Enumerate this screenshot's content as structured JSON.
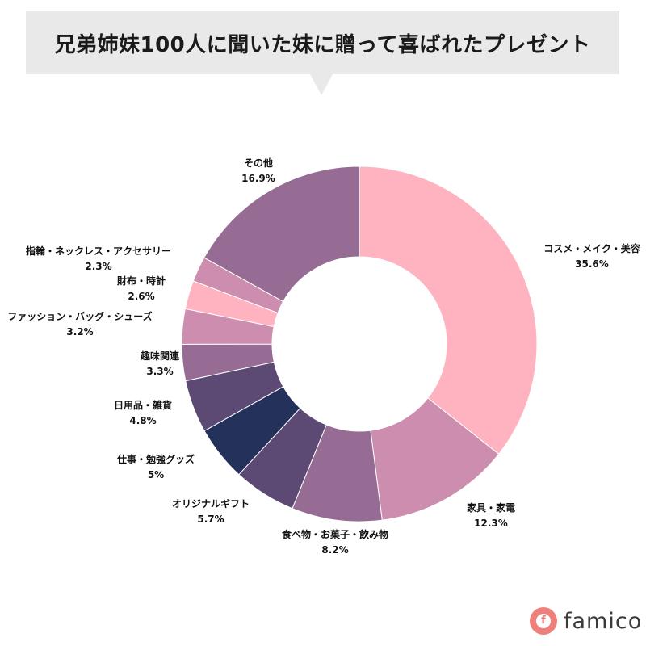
{
  "title": "兄弟姉妹100人に聞いた妹に贈って喜ばれたプレゼント",
  "brand": {
    "name": "famico",
    "badge_letter": "f",
    "color": "#ef7f7a"
  },
  "chart_data": {
    "type": "pie",
    "donut": true,
    "start": "12 o'clock",
    "direction": "clockwise",
    "slices": [
      {
        "label": "コスメ・メイク・美容",
        "value": 35.6,
        "display": "35.6%",
        "color": "#ffb3c1"
      },
      {
        "label": "家具・家電",
        "value": 12.3,
        "display": "12.3%",
        "color": "#cc8daf"
      },
      {
        "label": "食べ物・お菓子・飲み物",
        "value": 8.2,
        "display": "8.2%",
        "color": "#966c95"
      },
      {
        "label": "オリジナルギフト",
        "value": 5.7,
        "display": "5.7%",
        "color": "#5c4a74"
      },
      {
        "label": "仕事・勉強グッズ",
        "value": 5,
        "display": "5%",
        "color": "#23315b"
      },
      {
        "label": "日用品・雑貨",
        "value": 4.8,
        "display": "4.8%",
        "color": "#5c4a74"
      },
      {
        "label": "趣味関連",
        "value": 3.3,
        "display": "3.3%",
        "color": "#966c95"
      },
      {
        "label": "ファッション・バッグ・シューズ",
        "value": 3.2,
        "display": "3.2%",
        "color": "#cc8daf"
      },
      {
        "label": "財布・時計",
        "value": 2.6,
        "display": "2.6%",
        "color": "#ffb3c1"
      },
      {
        "label": "指輪・ネックレス・アクセサリー",
        "value": 2.3,
        "display": "2.3%",
        "color": "#cc8daf"
      },
      {
        "label": "その他",
        "value": 16.9,
        "display": "16.9%",
        "color": "#966c95"
      }
    ]
  }
}
